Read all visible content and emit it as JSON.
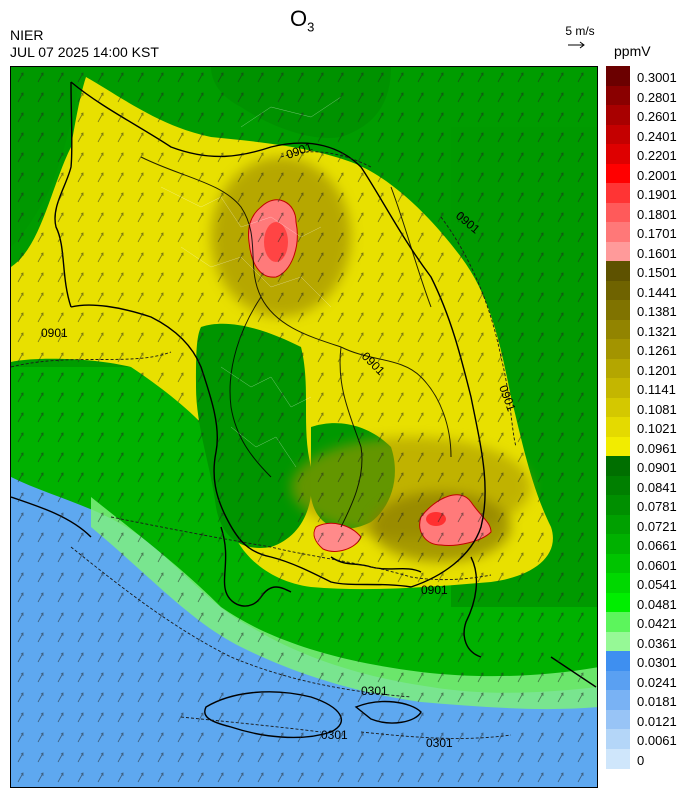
{
  "header": {
    "title_main": "O",
    "title_sub": "3",
    "agency": "NIER",
    "timestamp": "JUL 07 2025 14:00 KST",
    "wind_reference": "5 m/s",
    "unit": "ppmV"
  },
  "map": {
    "contour_labels": [
      "0901",
      "0901",
      "0901",
      "0901",
      "0901",
      "0901",
      "0301",
      "0301",
      "0301"
    ]
  },
  "legend": {
    "levels": [
      {
        "label": "0.3001",
        "color": "#6b0000"
      },
      {
        "label": "0.2801",
        "color": "#8a0000"
      },
      {
        "label": "0.2601",
        "color": "#a80000"
      },
      {
        "label": "0.2401",
        "color": "#c40000"
      },
      {
        "label": "0.2201",
        "color": "#de0000"
      },
      {
        "label": "0.2001",
        "color": "#ff0000"
      },
      {
        "label": "0.1901",
        "color": "#ff3434"
      },
      {
        "label": "0.1801",
        "color": "#ff5a5a"
      },
      {
        "label": "0.1701",
        "color": "#ff7878"
      },
      {
        "label": "0.1601",
        "color": "#ff9a9a"
      },
      {
        "label": "0.1501",
        "color": "#5e5200"
      },
      {
        "label": "0.1441",
        "color": "#6f6300"
      },
      {
        "label": "0.1381",
        "color": "#807300"
      },
      {
        "label": "0.1321",
        "color": "#928400"
      },
      {
        "label": "0.1261",
        "color": "#a39400"
      },
      {
        "label": "0.1201",
        "color": "#b4a600"
      },
      {
        "label": "0.1141",
        "color": "#c4b600"
      },
      {
        "label": "0.1081",
        "color": "#d4c800"
      },
      {
        "label": "0.1021",
        "color": "#e4da00"
      },
      {
        "label": "0.0961",
        "color": "#f2ec00"
      },
      {
        "label": "0.0901",
        "color": "#006f00"
      },
      {
        "label": "0.0841",
        "color": "#007f00"
      },
      {
        "label": "0.0781",
        "color": "#008f00"
      },
      {
        "label": "0.0721",
        "color": "#00a000"
      },
      {
        "label": "0.0661",
        "color": "#00b100"
      },
      {
        "label": "0.0601",
        "color": "#00c400"
      },
      {
        "label": "0.0541",
        "color": "#00d800"
      },
      {
        "label": "0.0481",
        "color": "#00ee00"
      },
      {
        "label": "0.0421",
        "color": "#5cf55c"
      },
      {
        "label": "0.0361",
        "color": "#96f996"
      },
      {
        "label": "0.0301",
        "color": "#3e8ff0"
      },
      {
        "label": "0.0241",
        "color": "#5aa0f2"
      },
      {
        "label": "0.0181",
        "color": "#79b2f4"
      },
      {
        "label": "0.0121",
        "color": "#98c4f6"
      },
      {
        "label": "0.0061",
        "color": "#b4d6f8"
      },
      {
        "label": "0",
        "color": "#cfe6fb"
      }
    ]
  }
}
